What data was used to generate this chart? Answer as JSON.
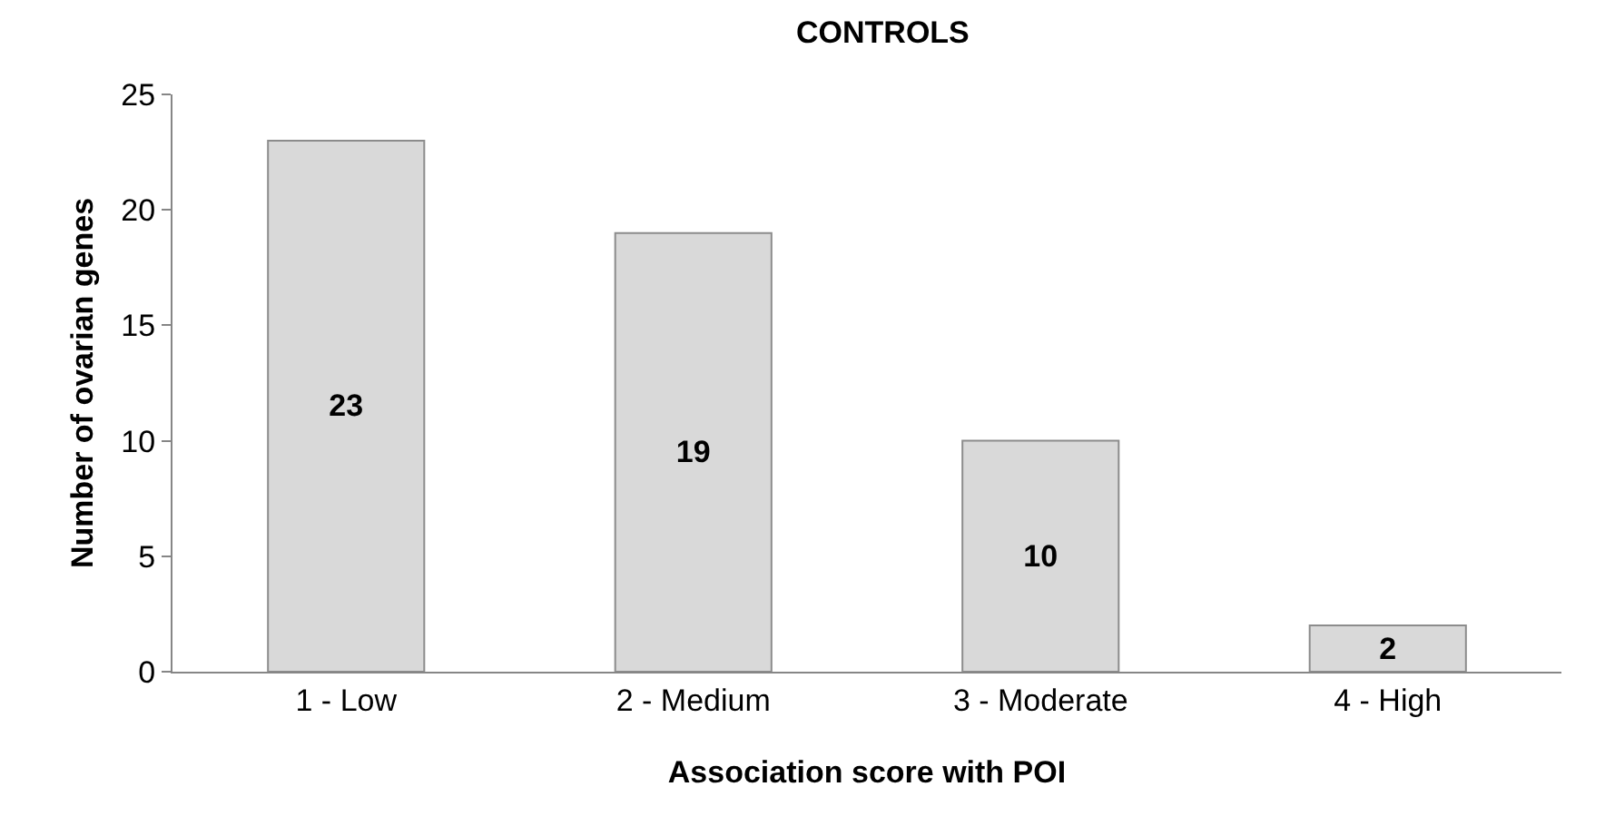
{
  "chart_data": {
    "type": "bar",
    "title": "CONTROLS",
    "xlabel": "Association score with POI",
    "ylabel": "Number of ovarian genes",
    "categories": [
      "1 - Low",
      "2 - Medium",
      "3 - Moderate",
      "4 - High"
    ],
    "values": [
      23,
      19,
      10,
      2
    ],
    "color": "#d9d9d9",
    "ylim": [
      0,
      25
    ],
    "yticks": [
      0,
      5,
      10,
      15,
      20,
      25
    ],
    "grid": false,
    "data_labels": true
  }
}
